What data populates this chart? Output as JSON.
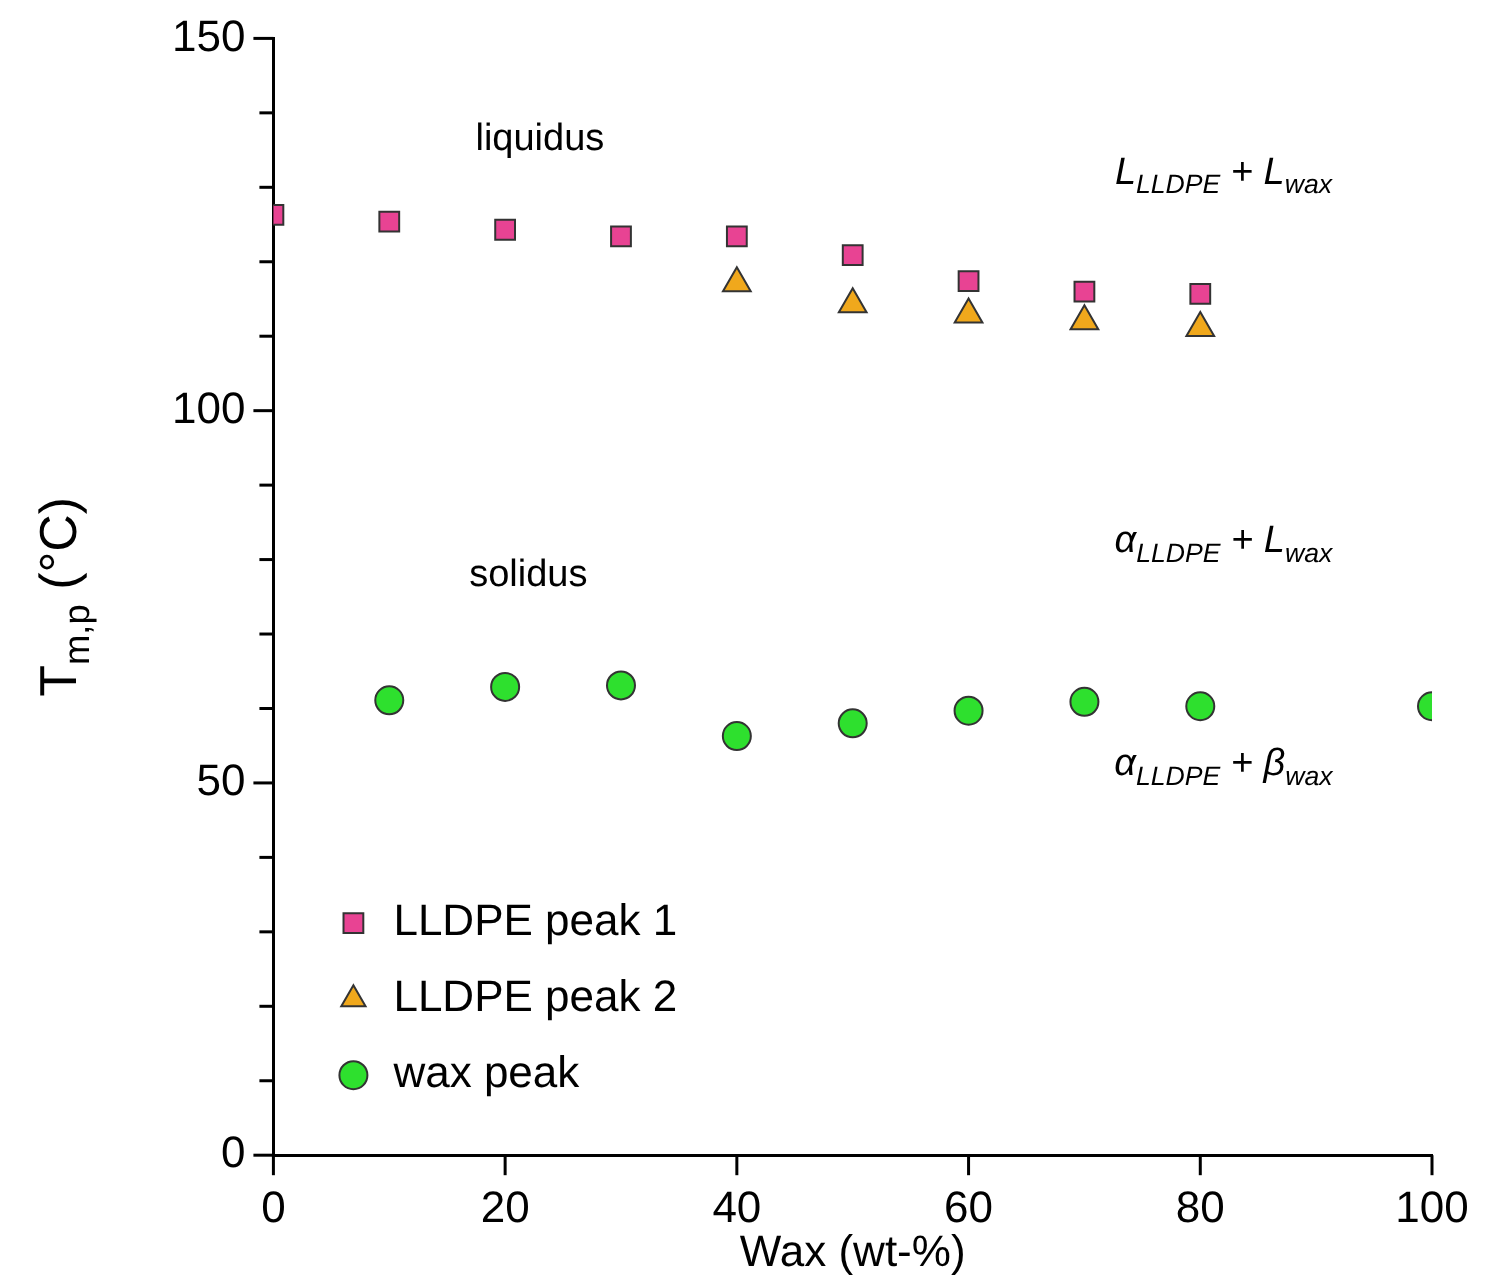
{
  "chart_data": {
    "type": "scatter",
    "xlabel": "Wax (wt-%)",
    "ylabel": "T$_{m,p}$ (°C)",
    "xlim": [
      0,
      100
    ],
    "xticks": [
      0,
      20,
      40,
      60,
      80,
      100
    ],
    "ylim": [
      0,
      150
    ],
    "yticks": [
      0,
      {
        "value": 10,
        "label": null
      },
      {
        "value": 20,
        "label": null
      },
      {
        "value": 30,
        "label": null
      },
      {
        "value": 40,
        "label": null
      },
      50,
      {
        "value": 60,
        "label": null
      },
      {
        "value": 70,
        "label": null
      },
      {
        "value": 80,
        "label": null
      },
      {
        "value": 90,
        "label": null
      },
      100,
      {
        "value": 110,
        "label": null
      },
      {
        "value": 120,
        "label": null
      },
      {
        "value": 130,
        "label": null
      },
      {
        "value": 140,
        "label": null
      },
      150
    ],
    "legend": "bottom left",
    "grid": false,
    "series": [
      {
        "name": "LLDPE peak 1",
        "color": "#e84393",
        "marker": "square",
        "x": [
          0,
          10,
          20,
          30,
          40,
          50,
          60,
          70,
          80
        ],
        "values": [
          126.3,
          125.4,
          124.3,
          123.4,
          123.4,
          120.9,
          117.4,
          116,
          115.7
        ]
      },
      {
        "name": "LLDPE peak 2",
        "color": "#f0a81c",
        "marker": "triangle",
        "x": [
          40,
          50,
          60,
          70,
          80
        ],
        "values": [
          117.1,
          114.3,
          112.9,
          112,
          111.1
        ]
      },
      {
        "name": "wax peak",
        "color": "#2ee02e",
        "marker": "circle",
        "x": [
          10,
          20,
          30,
          40,
          50,
          60,
          70,
          80,
          100
        ],
        "values": [
          61.1,
          62.9,
          63.1,
          56.3,
          58,
          59.7,
          60.9,
          60.3,
          60.3
        ]
      }
    ],
    "annotations": [
      "liquidus",
      "solidus",
      "L$_{LLDPE}$ + L$_{wax}$",
      "α$_{LLDPE}$ + L$_{wax}$",
      "α$_{LLDPE}$ + β$_{wax}$"
    ]
  }
}
